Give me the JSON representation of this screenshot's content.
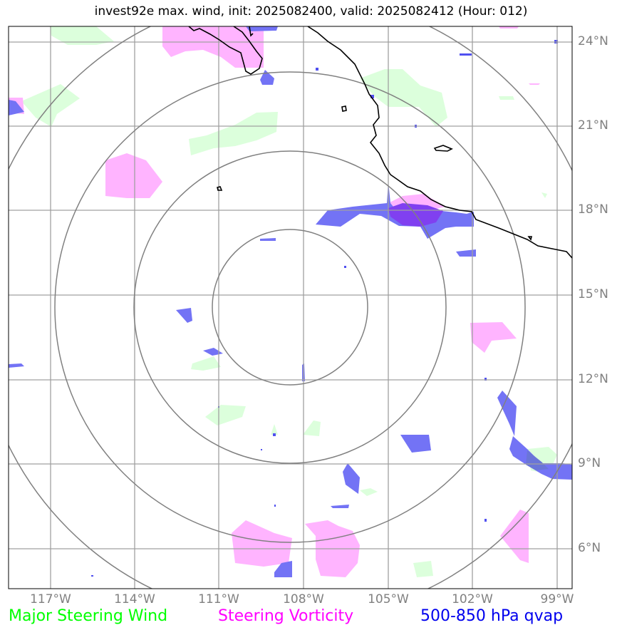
{
  "title": "invest92e max. wind, init: 2025082400, valid: 2025082412 (Hour: 012)",
  "map": {
    "lon_range": [
      -118,
      -98.5
    ],
    "lat_range": [
      4.8,
      24.6
    ],
    "lon_ticks": [
      "117°W",
      "114°W",
      "111°W",
      "108°W",
      "105°W",
      "102°W",
      "99°W"
    ],
    "lat_ticks": [
      "24°N",
      "21°N",
      "18°N",
      "15°N",
      "12°N",
      "9°N",
      "6°N"
    ],
    "storm_center": {
      "lon": -108.0,
      "lat": 14.7
    },
    "range_rings_deg": [
      2.75,
      5.5,
      8.3,
      11.1
    ]
  },
  "legend": {
    "steering_wind": {
      "label": "Major Steering Wind",
      "color": "#00ff00"
    },
    "vorticity": {
      "label": "Steering Vorticity",
      "color": "#ff00ff"
    },
    "qvap": {
      "label": "500-850 hPa qvap",
      "color": "#0000ee"
    }
  },
  "colors": {
    "wind_fill": "#dcffdc",
    "vort_fill": "#ffb4ff",
    "qvap_fill": "#7373f5",
    "grid": "#a0a0a0",
    "ring": "#808080",
    "coast": "#000000"
  }
}
